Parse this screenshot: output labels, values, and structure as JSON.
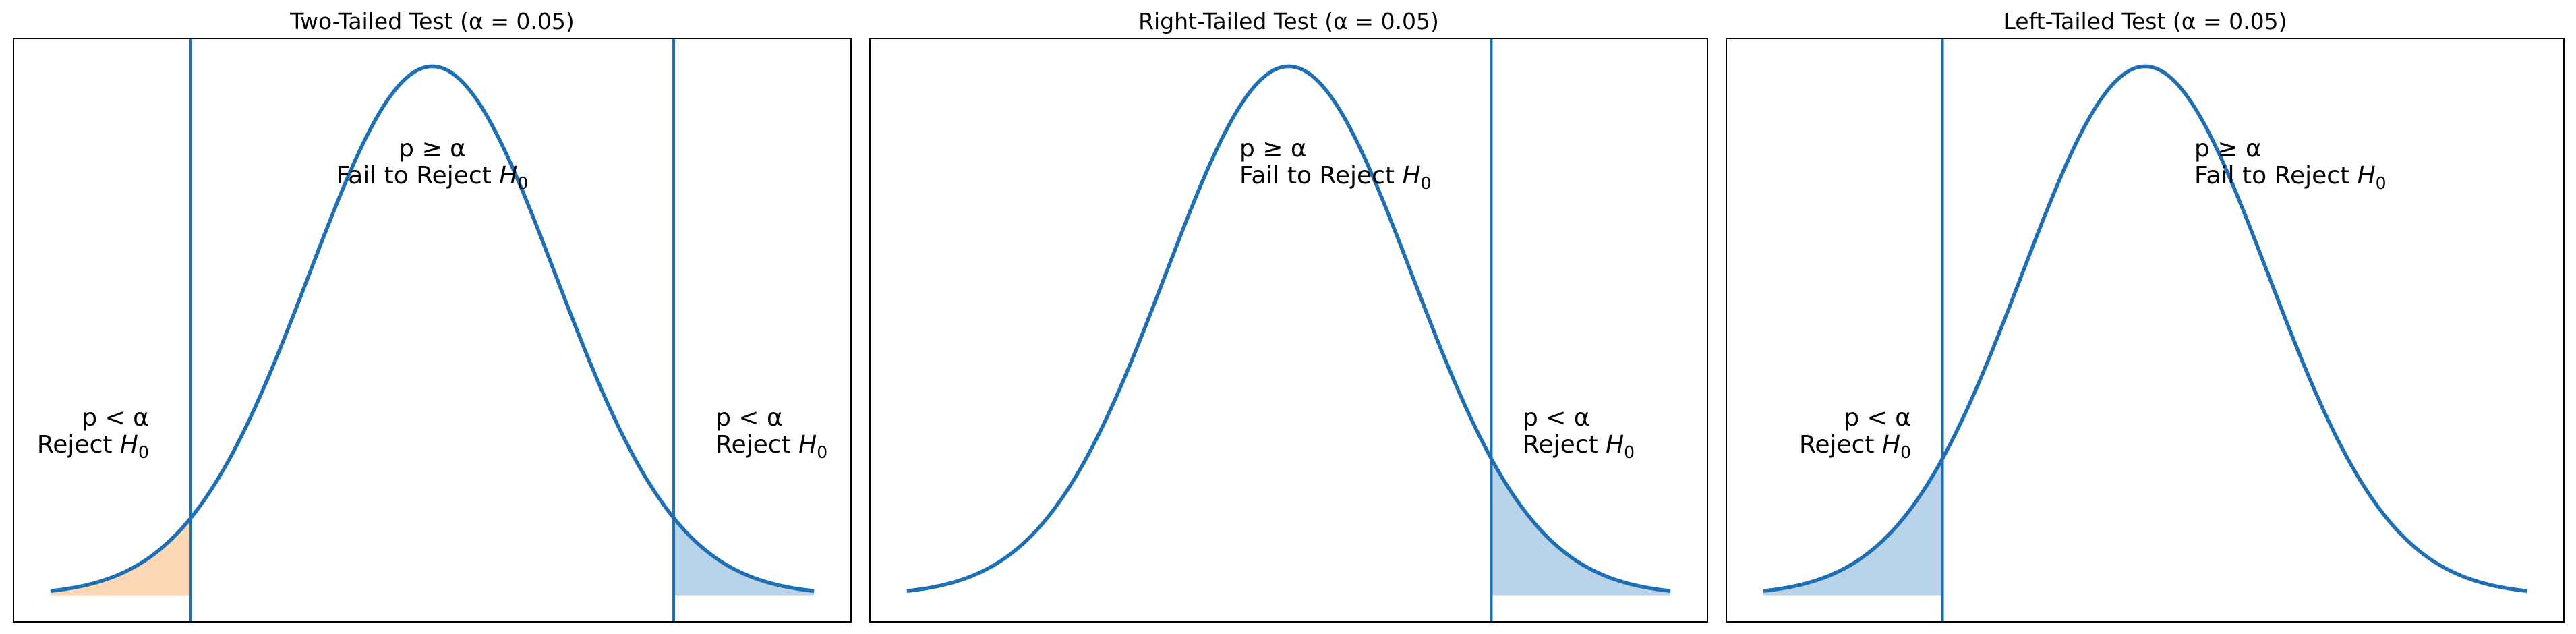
{
  "colors": {
    "curve": "#1f6fb5",
    "reject_fill_right": "#b9d4ea",
    "reject_fill_left_two_tailed": "#fdd8b5",
    "frame": "#000000",
    "background": "#ffffff"
  },
  "chart_data": [
    {
      "type": "area",
      "title": "Two-Tailed Test (α = 0.05)",
      "xlabel": "",
      "ylabel": "",
      "xlim": [
        -3.4,
        3.4
      ],
      "ylim": [
        -0.02,
        0.42
      ],
      "curve": "standard normal pdf, x from -3.1 to 3.1",
      "grid": false,
      "critical_values": [
        -1.96,
        1.96
      ],
      "shaded_regions": [
        {
          "from": -3.1,
          "to": -1.96,
          "color": "#fdd8b5"
        },
        {
          "from": 1.96,
          "to": 3.1,
          "color": "#b9d4ea"
        }
      ],
      "annotations": [
        {
          "id": "center",
          "x": 0.0,
          "y": 0.325,
          "align": "center",
          "line1": "p ≥ α",
          "line2_prefix": "Fail to Reject ",
          "symbol": "H",
          "subscript": "0"
        },
        {
          "id": "left",
          "x": -2.3,
          "y": 0.122,
          "align": "right",
          "line1": "p < α",
          "line2_prefix": "Reject ",
          "symbol": "H",
          "subscript": "0"
        },
        {
          "id": "right",
          "x": 2.3,
          "y": 0.122,
          "align": "left",
          "line1": "p < α",
          "line2_prefix": "Reject ",
          "symbol": "H",
          "subscript": "0"
        }
      ]
    },
    {
      "type": "area",
      "title": "Right-Tailed Test (α = 0.05)",
      "xlabel": "",
      "ylabel": "",
      "xlim": [
        -3.4,
        3.4
      ],
      "ylim": [
        -0.02,
        0.42
      ],
      "curve": "standard normal pdf, x from -3.1 to 3.1",
      "grid": false,
      "critical_values": [
        1.645
      ],
      "shaded_regions": [
        {
          "from": 1.645,
          "to": 3.1,
          "color": "#b9d4ea"
        }
      ],
      "annotations": [
        {
          "id": "center",
          "x": -0.4,
          "y": 0.325,
          "align": "left",
          "line1": "p ≥ α",
          "line2_prefix": "Fail to Reject ",
          "symbol": "H",
          "subscript": "0"
        },
        {
          "id": "right",
          "x": 1.9,
          "y": 0.122,
          "align": "left",
          "line1": "p < α",
          "line2_prefix": "Reject ",
          "symbol": "H",
          "subscript": "0"
        }
      ]
    },
    {
      "type": "area",
      "title": "Left-Tailed Test (α = 0.05)",
      "xlabel": "",
      "ylabel": "",
      "xlim": [
        -3.4,
        3.4
      ],
      "ylim": [
        -0.02,
        0.42
      ],
      "curve": "standard normal pdf, x from -3.1 to 3.1",
      "grid": false,
      "critical_values": [
        -1.645
      ],
      "shaded_regions": [
        {
          "from": -3.1,
          "to": -1.645,
          "color": "#b9d4ea"
        }
      ],
      "annotations": [
        {
          "id": "center",
          "x": 0.4,
          "y": 0.325,
          "align": "left",
          "line1": "p ≥ α",
          "line2_prefix": "Fail to Reject ",
          "symbol": "H",
          "subscript": "0"
        },
        {
          "id": "left",
          "x": -1.9,
          "y": 0.122,
          "align": "right",
          "line1": "p < α",
          "line2_prefix": "Reject ",
          "symbol": "H",
          "subscript": "0"
        }
      ]
    }
  ]
}
